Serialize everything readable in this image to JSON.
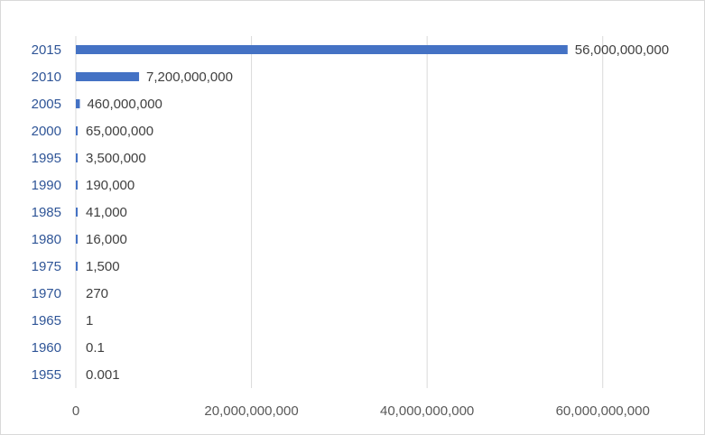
{
  "chart_data": {
    "type": "bar",
    "orientation": "horizontal",
    "categories": [
      "2015",
      "2010",
      "2005",
      "2000",
      "1995",
      "1990",
      "1985",
      "1980",
      "1975",
      "1970",
      "1965",
      "1960",
      "1955"
    ],
    "values": [
      56000000000,
      7200000000,
      460000000,
      65000000,
      3500000,
      190000,
      41000,
      16000,
      1500,
      270,
      1,
      0.1,
      0.001
    ],
    "data_labels": [
      "56,000,000,000",
      "7,200,000,000",
      "460,000,000",
      "65,000,000",
      "3,500,000",
      "190,000",
      "41,000",
      "16,000",
      "1,500",
      "270",
      "1",
      "0.1",
      "0.001"
    ],
    "x_ticks": [
      0,
      20000000000,
      40000000000,
      60000000000
    ],
    "x_tick_labels": [
      "0",
      "20,000,000,000",
      "40,000,000,000",
      "60,000,000,000"
    ],
    "xlim": [
      0,
      70000000000
    ],
    "grid": "vertical",
    "legend": "none",
    "bar_color": "#4472c4",
    "gridline_color": "#d9d9d9",
    "category_label_color": "#2f5597"
  }
}
